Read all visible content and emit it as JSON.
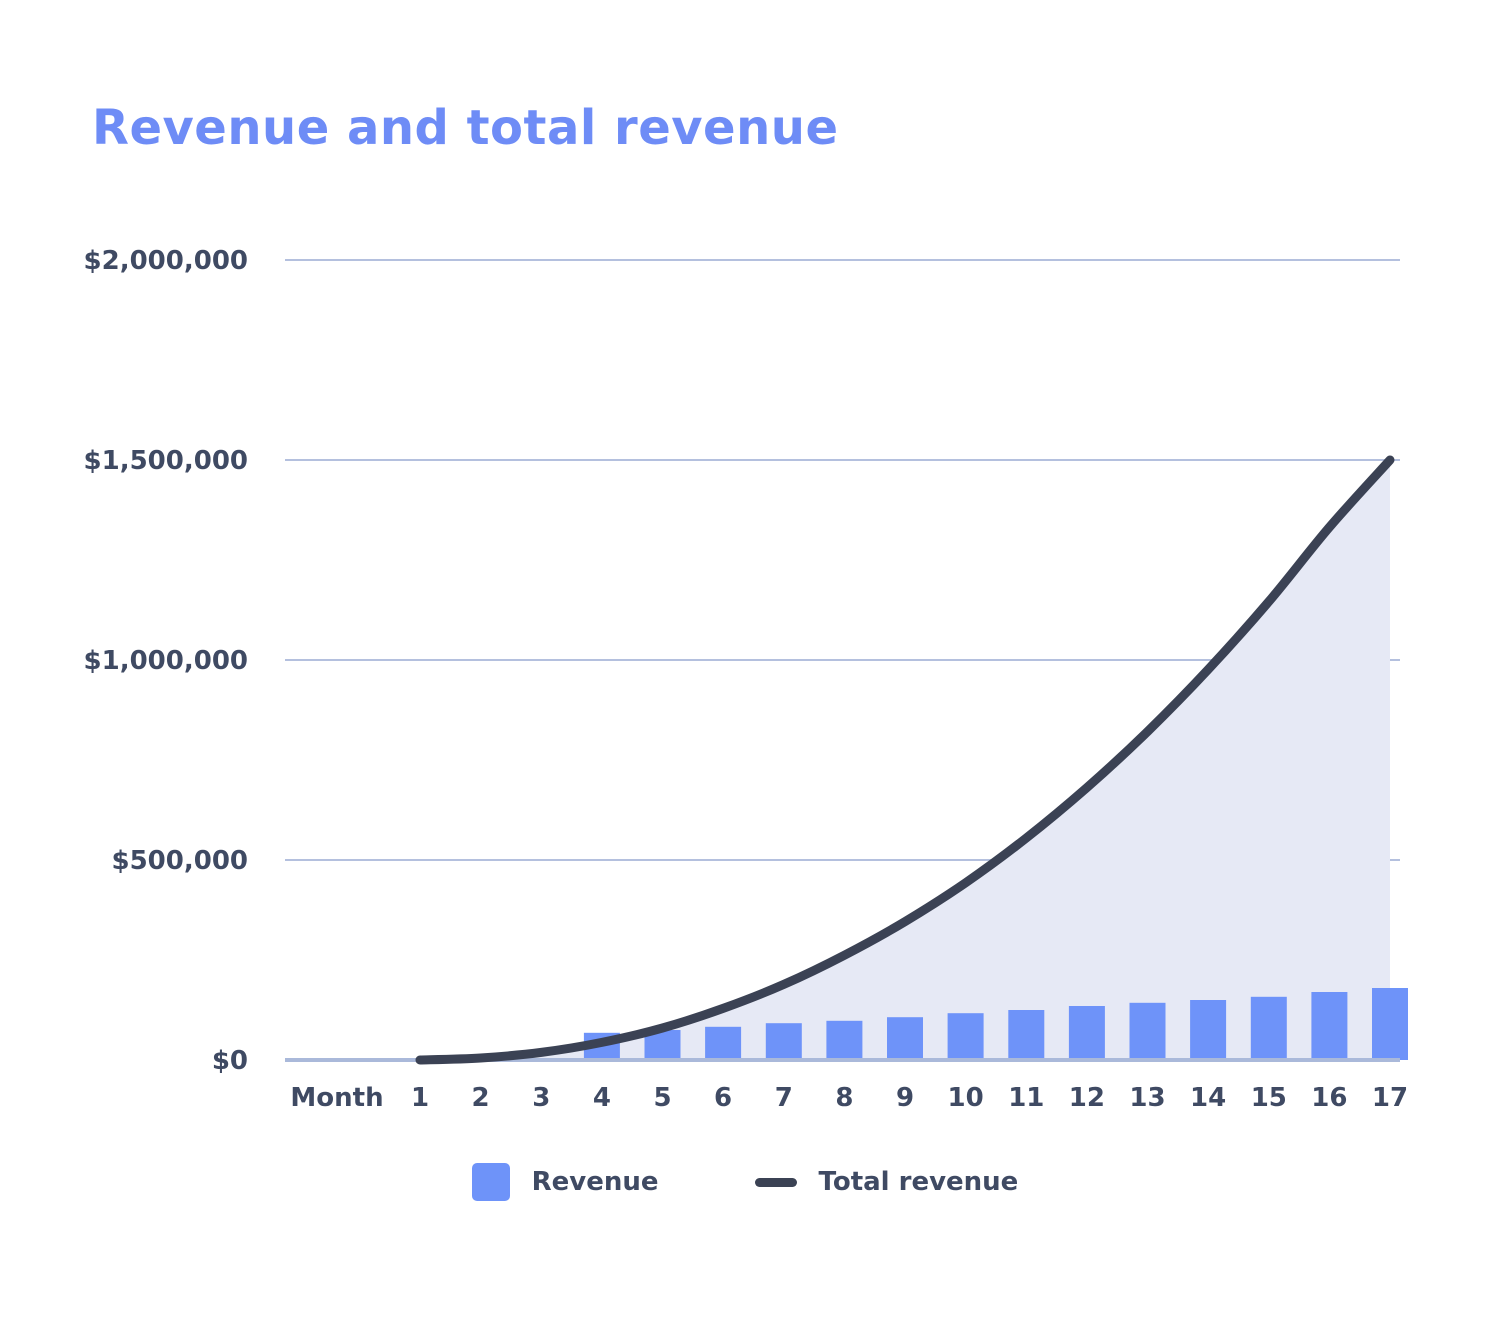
{
  "page": {
    "background": "#ffffff"
  },
  "chart": {
    "title": "Revenue and total revenue",
    "title_color": "#6e8cf6"
  },
  "legend": {
    "position": "bottom",
    "items": [
      {
        "label": "Revenue",
        "swatch": "square",
        "color": "#6e93f9"
      },
      {
        "label": "Total revenue",
        "swatch": "dash",
        "color": "#3b4254"
      }
    ]
  },
  "chart_data": {
    "type": "bar+line",
    "title": "Revenue and total revenue",
    "x_axis_label": "Month",
    "categories": [
      1,
      2,
      3,
      4,
      5,
      6,
      7,
      8,
      9,
      10,
      11,
      12,
      13,
      14,
      15,
      16,
      17
    ],
    "series": [
      {
        "name": "Revenue",
        "kind": "bar",
        "color": "#6e93f9",
        "values": [
          0,
          0,
          0,
          68000,
          75000,
          83000,
          92000,
          98000,
          107000,
          117000,
          125000,
          135000,
          143000,
          150000,
          158000,
          170000,
          180000
        ]
      },
      {
        "name": "Total revenue",
        "kind": "line",
        "color": "#3b4254",
        "area_fill": "#e6e9f5",
        "values": [
          0,
          5000,
          19000,
          44000,
          80000,
          129000,
          189000,
          262000,
          346000,
          443000,
          555000,
          681000,
          821000,
          976000,
          1146000,
          1332000,
          1500000
        ]
      }
    ],
    "y_ticks": [
      {
        "value": 0,
        "label": "$0"
      },
      {
        "value": 500000,
        "label": "$500,000"
      },
      {
        "value": 1000000,
        "label": "$1,000,000"
      },
      {
        "value": 1500000,
        "label": "$1,500,000"
      },
      {
        "value": 2000000,
        "label": "$2,000,000"
      }
    ],
    "ylim": [
      0,
      2000000
    ],
    "grid": "horizontal",
    "gridline_color": "#b4c0de",
    "baseline_color": "#aab9da",
    "axis_text_color": "#3f4a63",
    "legend_position": "bottom"
  }
}
